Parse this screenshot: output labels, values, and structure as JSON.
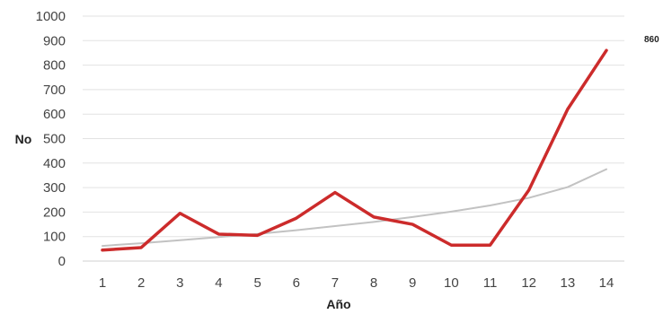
{
  "chart_data": {
    "type": "line",
    "title": "",
    "xlabel": "Año",
    "ylabel": "No",
    "x": [
      1,
      2,
      3,
      4,
      5,
      6,
      7,
      8,
      9,
      10,
      11,
      12,
      13,
      14
    ],
    "xticks": [
      "1",
      "2",
      "3",
      "4",
      "5",
      "6",
      "7",
      "8",
      "9",
      "10",
      "11",
      "12",
      "13",
      "14"
    ],
    "ylim": [
      0,
      1000
    ],
    "yticks": [
      "0",
      "100",
      "200",
      "300",
      "400",
      "500",
      "600",
      "700",
      "800",
      "900",
      "1000"
    ],
    "grid": "horizontal",
    "legend": "none",
    "series": [
      {
        "values": [
          45,
          55,
          195,
          110,
          105,
          175,
          280,
          180,
          150,
          65,
          65,
          290,
          620,
          860
        ],
        "color": "#cc2b2b"
      },
      {
        "style": "trendline",
        "values": [
          62,
          73,
          85,
          98,
          111,
          126,
          143,
          160,
          180,
          202,
          227,
          258,
          302,
          375
        ],
        "color": "#c2c2c2"
      }
    ],
    "annotations": [
      {
        "text": "860",
        "series": 0,
        "point": 13
      }
    ]
  }
}
